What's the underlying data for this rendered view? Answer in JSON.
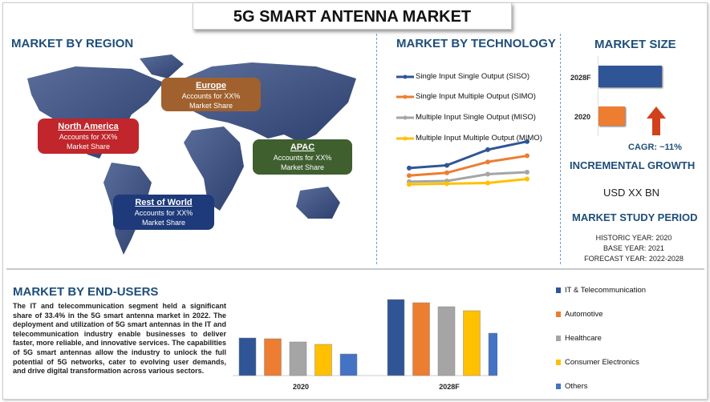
{
  "title": "5G SMART ANTENNA MARKET",
  "region": {
    "heading": "MARKET BY REGION",
    "boxes": [
      {
        "name": "Europe",
        "text": "Accounts for XX%",
        "text2": "Market Share",
        "color": "#a0612e"
      },
      {
        "name": "North America",
        "text": "Accounts for XX%",
        "text2": "Market Share",
        "color": "#c0262b"
      },
      {
        "name": "APAC",
        "text": "Accounts for XX%",
        "text2": "Market Share",
        "color": "#3f5f2f"
      },
      {
        "name": "Rest of World",
        "text": "Accounts for XX%",
        "text2": "Market Share",
        "color": "#1e3a7a"
      }
    ]
  },
  "technology": {
    "heading": "MARKET BY TECHNOLOGY",
    "chart_data": {
      "type": "line",
      "series": [
        {
          "name": "Single Input Single Output (SISO)",
          "color": "#2f5597",
          "values": [
            39,
            43,
            66,
            78
          ]
        },
        {
          "name": "Single Input Multiple Output (SIMO)",
          "color": "#ed7d31",
          "values": [
            28,
            32,
            48,
            57
          ]
        },
        {
          "name": "Multiple Input Single Output (MISO)",
          "color": "#a5a5a5",
          "values": [
            19,
            20,
            30,
            33
          ]
        },
        {
          "name": "Multiple Input Multiple Output (MIMO)",
          "color": "#ffc000",
          "values": [
            15,
            16,
            17,
            23
          ]
        }
      ]
    }
  },
  "size": {
    "heading": "MARKET SIZE",
    "chart_data": {
      "type": "bar",
      "orientation": "horizontal",
      "categories": [
        "2028F",
        "2020"
      ],
      "values": [
        79,
        33
      ],
      "colors": [
        "#2f5597",
        "#ed7d31"
      ]
    },
    "cagr": "CAGR:  ~11%",
    "incremental_heading": "INCREMENTAL GROWTH",
    "incremental_value": "USD XX BN",
    "period_heading": "MARKET STUDY PERIOD",
    "historic": "HISTORIC YEAR: 2020",
    "base": "BASE YEAR: 2021",
    "forecast": "FORECAST YEAR: 2022-2028"
  },
  "endusers": {
    "heading": "MARKET BY END-USERS",
    "paragraph": "The IT and telecommunication segment held a significant share of 33.4% in the 5G smart antenna market in 2022. The deployment and utilization of 5G smart antennas in the IT and telecommunication industry enable businesses to deliver faster, more reliable, and innovative services. The capabilities of 5G smart antennas allow the industry to unlock the full potential of 5G networks, cater to evolving user demands, and drive digital transformation across various sectors.",
    "chart_data": {
      "type": "bar",
      "categories": [
        "2020",
        "2028F"
      ],
      "series": [
        {
          "name": "IT & Telecommunication",
          "color": "#2f5597",
          "values": [
            47,
            95
          ]
        },
        {
          "name": "Automotive",
          "color": "#ed7d31",
          "values": [
            46,
            91
          ]
        },
        {
          "name": "Healthcare",
          "color": "#a5a5a5",
          "values": [
            42,
            86
          ]
        },
        {
          "name": "Consumer Electronics",
          "color": "#ffc000",
          "values": [
            39,
            81
          ]
        },
        {
          "name": "Others",
          "color": "#4472c4",
          "values": [
            27,
            53
          ]
        }
      ]
    }
  }
}
